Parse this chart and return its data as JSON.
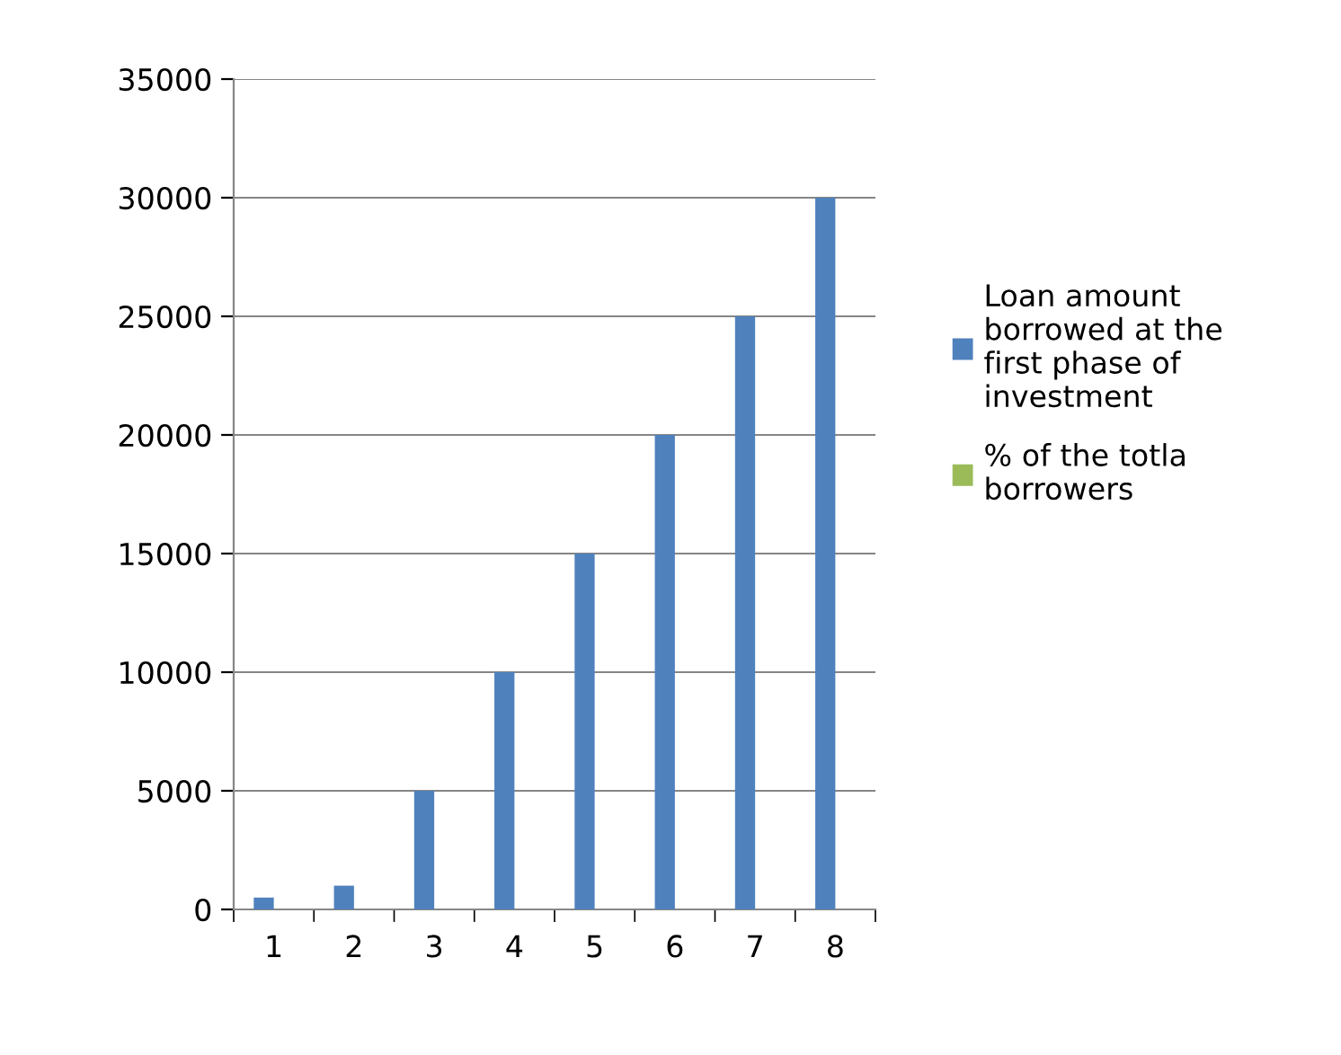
{
  "chart_data": {
    "type": "bar",
    "categories": [
      "1",
      "2",
      "3",
      "4",
      "5",
      "6",
      "7",
      "8"
    ],
    "series": [
      {
        "name": "Loan amount borrowed at the first phase of investment",
        "color": "#4f81bd",
        "values": [
          500,
          1000,
          5000,
          10000,
          15000,
          20000,
          25000,
          30000
        ]
      },
      {
        "name": "% of the totla borrowers",
        "color": "#9bbb59",
        "values": [
          null,
          null,
          null,
          null,
          null,
          null,
          null,
          null
        ]
      }
    ],
    "ylim": [
      0,
      35000
    ],
    "yticks": [
      0,
      5000,
      10000,
      15000,
      20000,
      25000,
      30000,
      35000
    ],
    "grid": "y",
    "legend": "right"
  }
}
